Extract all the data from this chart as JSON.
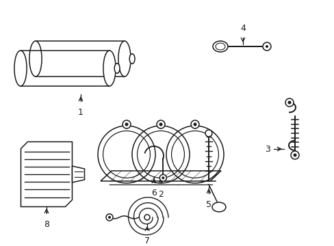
{
  "bg_color": "#ffffff",
  "line_color": "#1a1a1a",
  "lw": 1.1,
  "fig_width": 4.89,
  "fig_height": 3.6,
  "dpi": 100
}
